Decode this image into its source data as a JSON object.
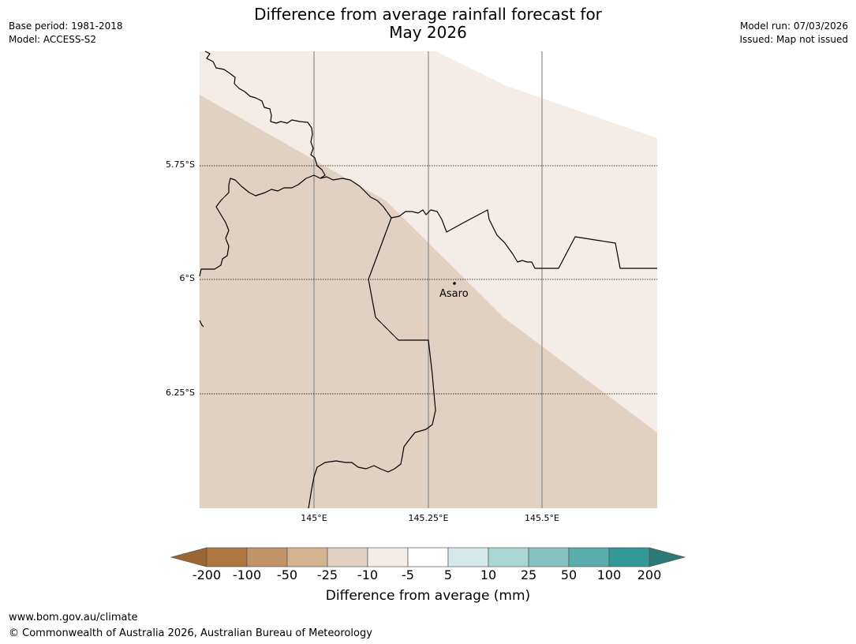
{
  "title": {
    "line1": "Difference from average rainfall forecast for",
    "line2": "May 2026"
  },
  "meta_left": {
    "base_period": "Base period: 1981-2018",
    "model": "Model: ACCESS-S2"
  },
  "meta_right": {
    "model_run": "Model run: 07/03/2026",
    "issued": "Issued: Map not issued"
  },
  "map": {
    "lat_labels": [
      "5.75°S",
      "6°S",
      "6.25°S"
    ],
    "lon_labels": [
      "145°E",
      "145.25°E",
      "145.5°E"
    ],
    "place": "Asaro",
    "region_colors": {
      "drier_band": "#e2d0c0",
      "near_average_band": "#f4ede7"
    }
  },
  "colorbar": {
    "labels": [
      "-200",
      "-100",
      "-50",
      "-25",
      "-10",
      "-5",
      "5",
      "10",
      "25",
      "50",
      "100",
      "200"
    ],
    "colors": [
      "#9b6633",
      "#af763f",
      "#c19467",
      "#d4b391",
      "#e2d0c0",
      "#f4ede7",
      "#ffffff",
      "#d6e9ea",
      "#acd5d5",
      "#85c2bf",
      "#5bacac",
      "#329898",
      "#2a7a7a"
    ],
    "title": "Difference from average (mm)"
  },
  "footer": {
    "url": "www.bom.gov.au/climate",
    "copyright": "© Commonwealth of Australia 2026, Australian Bureau of Meteorology"
  }
}
